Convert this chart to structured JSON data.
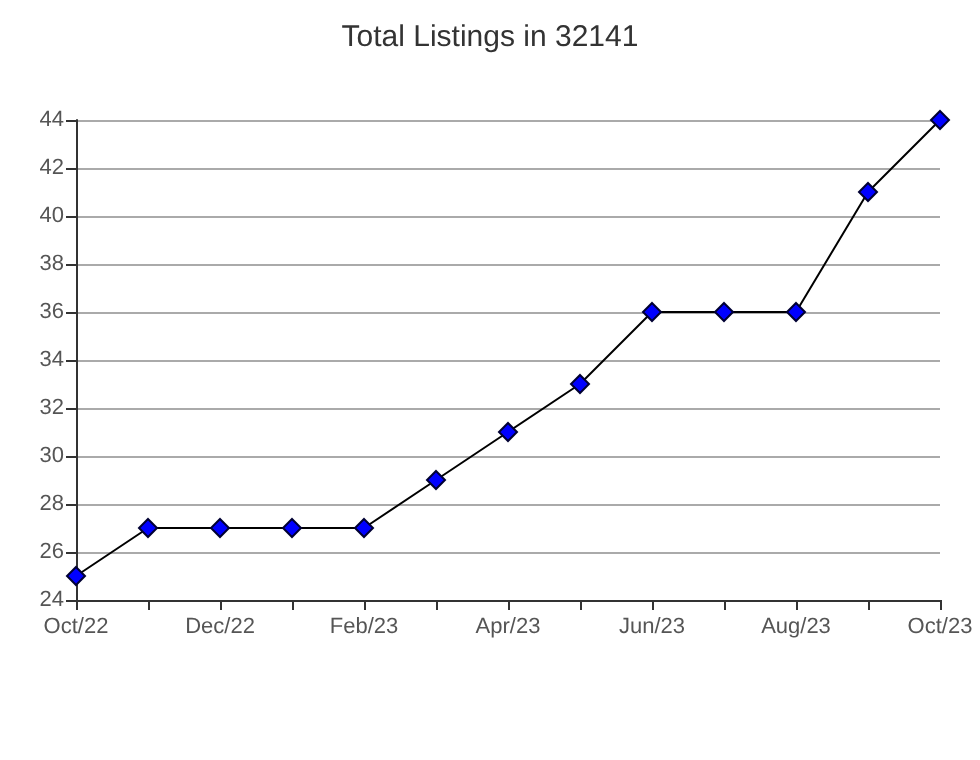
{
  "chart_data": {
    "type": "line",
    "title": "Total Listings in 32141",
    "categories": [
      "Oct/22",
      null,
      "Dec/22",
      null,
      "Feb/23",
      null,
      "Apr/23",
      null,
      "Jun/23",
      null,
      "Aug/23",
      null,
      "Oct/23"
    ],
    "series": [
      {
        "color": "#0000ff",
        "values": [
          25,
          27,
          27,
          27,
          27,
          29,
          31,
          33,
          36,
          36,
          36,
          41,
          44
        ]
      }
    ],
    "ylim": [
      24,
      44
    ],
    "yticks": [
      24,
      26,
      28,
      30,
      32,
      34,
      36,
      38,
      40,
      42,
      44
    ],
    "grid": "y",
    "marker": "diamond",
    "line_style": "solid"
  }
}
